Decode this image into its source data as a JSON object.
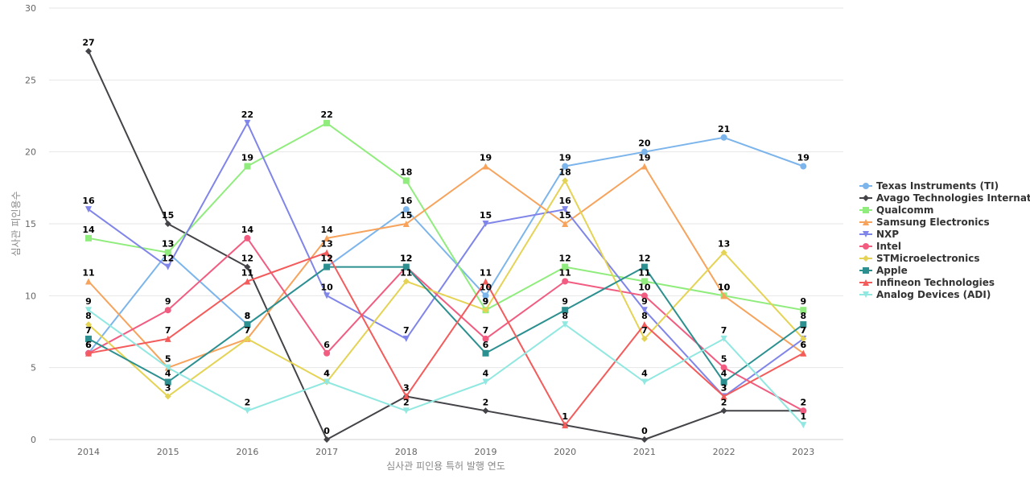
{
  "chart_data": {
    "type": "line",
    "title": "",
    "xlabel": "심사관 피인용 특허 발행 연도",
    "ylabel": "심사관 피인용수",
    "ylim": [
      0,
      30
    ],
    "yticks": [
      "0",
      "5",
      "10",
      "15",
      "20",
      "25",
      "30"
    ],
    "categories": [
      "2014",
      "2015",
      "2016",
      "2017",
      "2018",
      "2019",
      "2020",
      "2021",
      "2022",
      "2023"
    ],
    "grid": true,
    "legend": "right",
    "series": [
      {
        "name": "Texas Instruments (TI)",
        "color": "#7cb5ec",
        "marker": "circle",
        "values": [
          6,
          13,
          8,
          12,
          16,
          10,
          19,
          20,
          21,
          19
        ]
      },
      {
        "name": "Avago Technologies Internat...",
        "color": "#434348",
        "marker": "diamond",
        "values": [
          27,
          15,
          12,
          0,
          3,
          2,
          1,
          0,
          2,
          2
        ]
      },
      {
        "name": "Qualcomm",
        "color": "#90ed7d",
        "marker": "square",
        "values": [
          14,
          13,
          19,
          22,
          18,
          9,
          12,
          11,
          10,
          9
        ]
      },
      {
        "name": "Samsung Electronics",
        "color": "#f7a35c",
        "marker": "triangle",
        "values": [
          11,
          5,
          7,
          14,
          15,
          19,
          15,
          19,
          10,
          6
        ]
      },
      {
        "name": "NXP",
        "color": "#8085e9",
        "marker": "triangle-down",
        "values": [
          16,
          12,
          22,
          10,
          7,
          15,
          16,
          9,
          3,
          7
        ]
      },
      {
        "name": "Intel",
        "color": "#f15c80",
        "marker": "circle",
        "values": [
          6,
          9,
          14,
          6,
          12,
          7,
          11,
          10,
          5,
          2
        ]
      },
      {
        "name": "STMicroelectronics",
        "color": "#e4d354",
        "marker": "diamond",
        "values": [
          8,
          3,
          7,
          4,
          11,
          9,
          18,
          7,
          13,
          7
        ]
      },
      {
        "name": "Apple",
        "color": "#2b908f",
        "marker": "square",
        "values": [
          7,
          4,
          8,
          12,
          12,
          6,
          9,
          12,
          4,
          8
        ]
      },
      {
        "name": "Infineon Technologies",
        "color": "#f45b5b",
        "marker": "triangle",
        "values": [
          6,
          7,
          11,
          13,
          3,
          11,
          1,
          8,
          3,
          6
        ]
      },
      {
        "name": "Analog Devices (ADI)",
        "color": "#91e8e1",
        "marker": "triangle-down",
        "values": [
          9,
          5,
          2,
          4,
          2,
          4,
          8,
          4,
          7,
          1
        ]
      }
    ]
  }
}
